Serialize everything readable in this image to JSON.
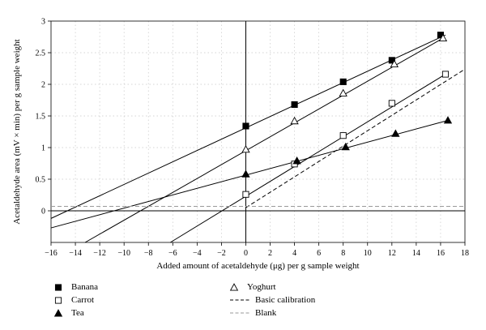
{
  "chart_data": {
    "type": "line",
    "xlabel": "Added amount of acetaldehyde (μg) per g sample weight",
    "ylabel": "Acetaldehyde area (mV × min) per g sample weight",
    "xlim": [
      -16,
      18
    ],
    "ylim": [
      -0.5,
      3
    ],
    "xticks": [
      -16,
      -14,
      -12,
      -10,
      -8,
      -6,
      -4,
      -2,
      0,
      2,
      4,
      6,
      8,
      10,
      12,
      14,
      16,
      18
    ],
    "yticks": [
      0,
      0.5,
      1,
      1.5,
      2,
      2.5,
      3
    ],
    "xtick_labels": [
      "−16",
      "−14",
      "−12",
      "−10",
      "−8",
      "−6",
      "−4",
      "−2",
      "0",
      "2",
      "4",
      "6",
      "8",
      "10",
      "12",
      "14",
      "16",
      "18"
    ],
    "ytick_labels": [
      "0",
      "0.5",
      "1",
      "1.5",
      "2",
      "2.5",
      "3"
    ],
    "grid": true,
    "legend_position": "bottom",
    "series": [
      {
        "name": "Banana",
        "marker": "filled-square",
        "color": "#000000",
        "x": [
          0,
          4,
          8,
          12,
          16
        ],
        "y": [
          1.34,
          1.68,
          2.04,
          2.38,
          2.78
        ],
        "fit_line": {
          "x_start": -16,
          "y_start": -0.12,
          "x_end": 16.4,
          "y_end": 2.78
        }
      },
      {
        "name": "Carrot",
        "marker": "open-square",
        "color": "#000000",
        "x": [
          0,
          4,
          8,
          12,
          16.4
        ],
        "y": [
          0.26,
          0.74,
          1.19,
          1.7,
          2.16
        ],
        "fit_line": {
          "x_start": -6.2,
          "y_start": -0.5,
          "x_end": 16.4,
          "y_end": 2.16
        }
      },
      {
        "name": "Tea",
        "marker": "filled-triangle",
        "color": "#000000",
        "x": [
          0,
          4.2,
          8.2,
          12.3,
          16.6
        ],
        "y": [
          0.58,
          0.79,
          1.01,
          1.22,
          1.43
        ],
        "fit_line": {
          "x_start": -16,
          "y_start": -0.27,
          "x_end": 16.6,
          "y_end": 1.43
        }
      },
      {
        "name": "Yoghurt",
        "marker": "open-triangle",
        "color": "#000000",
        "x": [
          0,
          4,
          8,
          12.2,
          16.2
        ],
        "y": [
          0.97,
          1.42,
          1.86,
          2.32,
          2.73
        ],
        "fit_line": {
          "x_start": -13.2,
          "y_start": -0.5,
          "x_end": 16.2,
          "y_end": 2.73
        }
      },
      {
        "name": "Basic calibration",
        "marker": "none",
        "style": "dashed",
        "color": "#000000",
        "x": [
          0,
          18
        ],
        "y": [
          0.05,
          2.24
        ]
      },
      {
        "name": "Blank",
        "marker": "none",
        "style": "dashed",
        "color": "#999999",
        "x": [
          -16,
          18
        ],
        "y": [
          0.07,
          0.07
        ]
      }
    ]
  }
}
